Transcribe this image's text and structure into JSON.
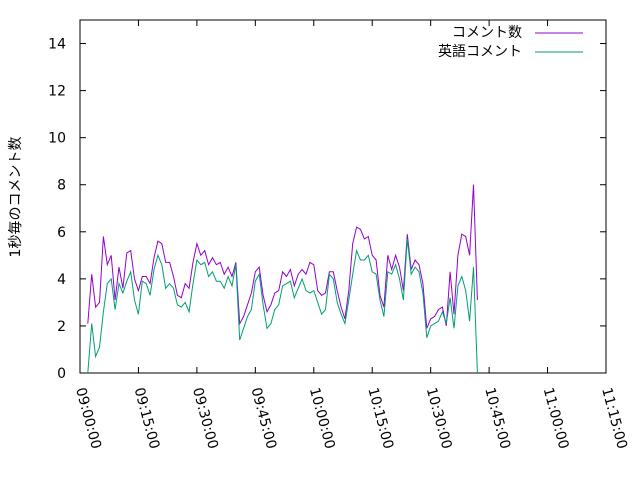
{
  "chart_data": {
    "type": "line",
    "ylabel": "1秒毎のコメント数",
    "xlabel": "",
    "ylim": [
      0,
      15
    ],
    "xlim": [
      "09:00:00",
      "11:15:00"
    ],
    "grid": false,
    "legend": "top-right",
    "yticks": [
      "0",
      "2",
      "4",
      "6",
      "8",
      "10",
      "12",
      "14"
    ],
    "xticks": [
      "09:00:00",
      "09:15:00",
      "09:30:00",
      "09:45:00",
      "10:00:00",
      "10:15:00",
      "10:30:00",
      "10:45:00",
      "11:00:00",
      "11:15:00"
    ],
    "x_start": "09:02:00",
    "x_step_minutes": 1,
    "series": [
      {
        "name": "コメント数",
        "color": "#9400d3",
        "values": [
          2.1,
          4.2,
          2.8,
          3.0,
          5.8,
          4.6,
          5.0,
          3.1,
          4.5,
          3.6,
          5.1,
          5.2,
          4.0,
          3.5,
          4.1,
          4.1,
          3.8,
          4.9,
          5.6,
          5.5,
          4.7,
          4.7,
          4.1,
          3.3,
          3.2,
          3.8,
          3.6,
          4.7,
          5.5,
          5.0,
          5.2,
          4.6,
          4.9,
          4.6,
          4.7,
          4.2,
          4.5,
          4.1,
          4.7,
          2.1,
          2.4,
          2.9,
          3.4,
          4.3,
          4.5,
          3.3,
          2.6,
          2.9,
          3.4,
          3.5,
          4.3,
          4.1,
          4.4,
          3.7,
          4.2,
          4.4,
          4.2,
          4.7,
          4.6,
          3.5,
          3.3,
          3.4,
          4.3,
          4.3,
          3.5,
          2.8,
          2.3,
          3.5,
          5.5,
          6.2,
          6.1,
          5.7,
          5.8,
          5.0,
          4.8,
          3.3,
          2.8,
          5.0,
          4.4,
          5.0,
          4.5,
          3.5,
          5.9,
          4.4,
          4.8,
          4.6,
          3.8,
          1.9,
          2.3,
          2.4,
          2.7,
          2.8,
          2.0,
          4.3,
          2.5,
          5.0,
          5.9,
          5.8,
          5.0,
          8.0,
          3.1
        ]
      },
      {
        "name": "英語コメント",
        "color": "#009e73",
        "values": [
          0.0,
          2.1,
          0.7,
          1.1,
          2.6,
          3.8,
          4.0,
          2.7,
          3.8,
          3.4,
          3.9,
          4.3,
          3.1,
          2.5,
          3.9,
          3.8,
          3.3,
          4.4,
          5.0,
          4.6,
          3.6,
          3.8,
          3.6,
          2.9,
          2.8,
          3.0,
          2.6,
          3.8,
          4.8,
          4.6,
          4.7,
          4.1,
          4.3,
          3.9,
          3.9,
          3.6,
          4.1,
          3.7,
          4.6,
          1.4,
          1.9,
          2.4,
          2.7,
          3.9,
          4.2,
          2.9,
          1.9,
          2.1,
          2.7,
          2.9,
          3.7,
          3.8,
          3.9,
          3.2,
          3.6,
          4.0,
          3.5,
          3.4,
          3.5,
          3.0,
          2.5,
          2.7,
          4.2,
          4.0,
          3.0,
          2.5,
          2.1,
          3.1,
          4.2,
          5.2,
          4.8,
          4.8,
          5.0,
          4.3,
          4.2,
          3.1,
          2.4,
          4.3,
          4.2,
          4.6,
          4.0,
          3.1,
          5.7,
          4.2,
          4.5,
          4.3,
          3.4,
          1.5,
          2.0,
          2.1,
          2.2,
          2.6,
          2.1,
          3.2,
          1.9,
          3.7,
          4.1,
          3.5,
          2.2,
          4.5,
          0.0
        ]
      }
    ]
  }
}
